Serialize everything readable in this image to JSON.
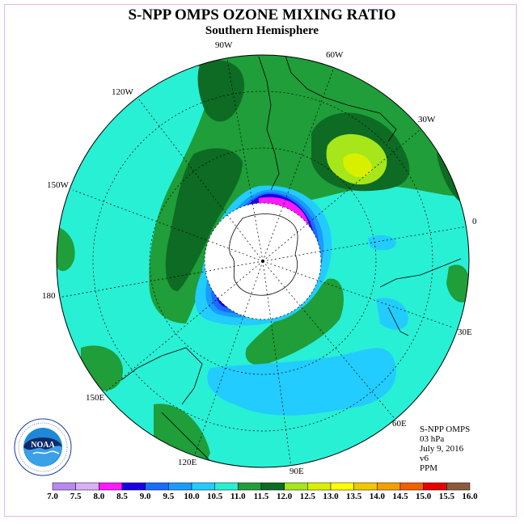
{
  "title": "S-NPP OMPS OZONE MIXING RATIO",
  "subtitle": "Southern Hemisphere",
  "longitude_labels": {
    "w90": "90W",
    "w60": "60W",
    "w30": "30W",
    "e0": "0",
    "w120": "120W",
    "w150": "150W",
    "w180": "180",
    "e30": "30E",
    "e60": "60E",
    "e90": "90E",
    "e120": "120E",
    "e150": "150E"
  },
  "info": {
    "product": "S-NPP OMPS",
    "level": "03 hPa",
    "date": "July 9, 2016",
    "version": "v6",
    "units": "PPM"
  },
  "logo": {
    "text": "NOAA",
    "ring_text": "NATIONAL OCEANIC AND ATMOSPHERIC ADMINISTRATION · U.S. DEPARTMENT OF COMMERCE"
  },
  "colorbar": {
    "colors": [
      "#b889f0",
      "#d9b0f5",
      "#ff1aff",
      "#1a00e6",
      "#1a6bff",
      "#1a9bff",
      "#22ccff",
      "#28f0d4",
      "#1f9e3a",
      "#0d6b24",
      "#a6e61a",
      "#d8f000",
      "#ffff00",
      "#f2c800",
      "#f2a000",
      "#f26000",
      "#e60000",
      "#8b5a3c"
    ],
    "labels": [
      "7.0",
      "7.5",
      "8.0",
      "8.5",
      "9.0",
      "9.5",
      "10.0",
      "10.5",
      "11.0",
      "11.5",
      "12.0",
      "12.5",
      "13.0",
      "13.5",
      "14.0",
      "14.5",
      "15.0",
      "15.5",
      "16.0"
    ]
  },
  "map_colors": {
    "background": "#28f0d4",
    "green": "#1f9e3a",
    "dark_green": "#0d6b24",
    "light_green": "#a6e61a",
    "yellow": "#d8f000",
    "light_blue": "#22ccff",
    "mid_blue": "#1a9bff",
    "blue": "#1a6bff",
    "deep_blue": "#1a00e6",
    "magenta": "#ff1aff",
    "purple": "#b889f0"
  }
}
